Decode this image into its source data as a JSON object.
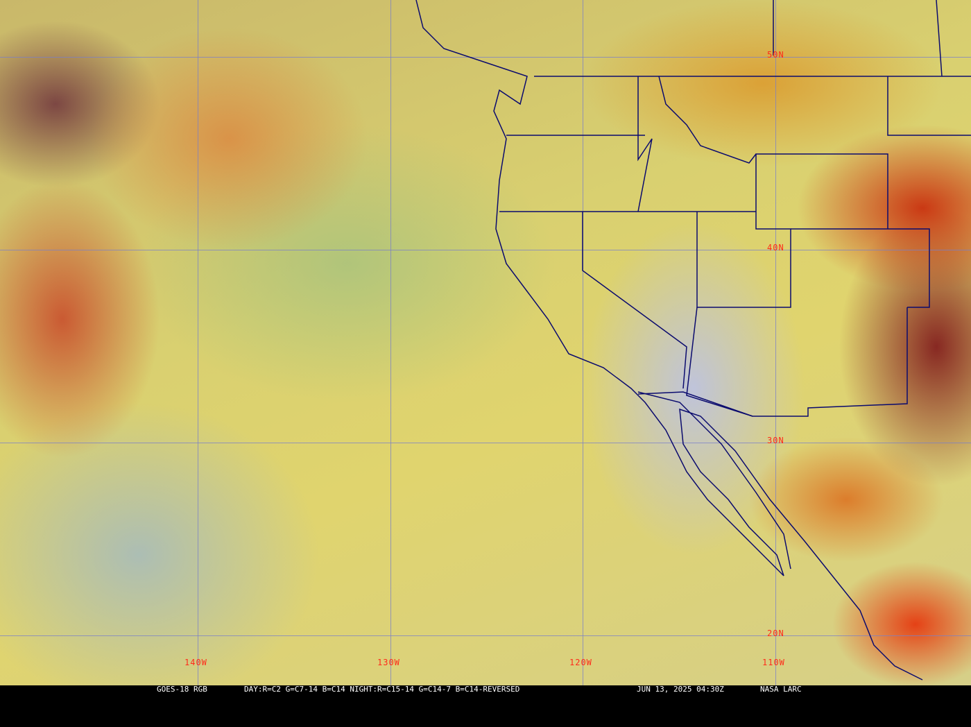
{
  "caption": {
    "satellite": "GOES-18 RGB",
    "recipe": "DAY:R=C2 G=C7-14 B=C14 NIGHT:R=C15-14 G=C14-7 B=C14-REVERSED",
    "timestamp": "JUN 13, 2025 04:30Z",
    "source": "NASA LARC"
  },
  "grid": {
    "latitudes": [
      "50N",
      "40N",
      "30N",
      "20N"
    ],
    "longitudes": [
      "140W",
      "130W",
      "120W",
      "110W"
    ]
  },
  "colors": {
    "grid_line": "#7a7fc8",
    "grid_label": "#ff2a1a",
    "borders": "#0a0a6e"
  }
}
